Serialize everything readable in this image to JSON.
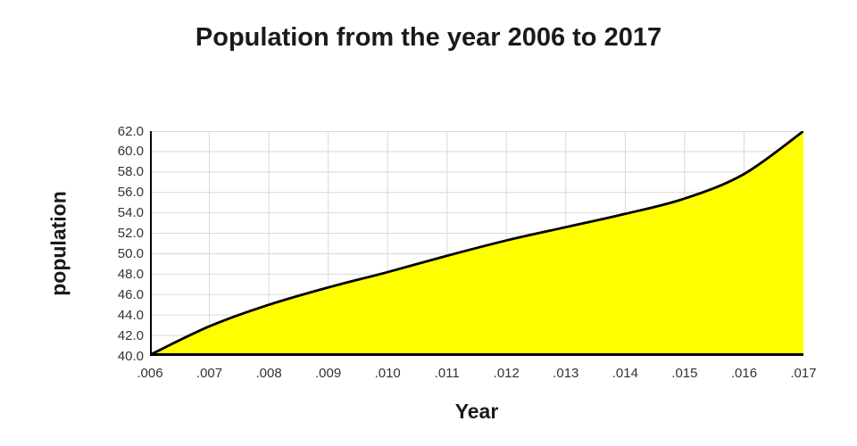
{
  "chart_data": {
    "type": "area",
    "title": "Population from the year 2006 to 2017",
    "xlabel": "Year",
    "ylabel": "population",
    "x": [
      2006,
      2007,
      2008,
      2009,
      2010,
      2011,
      2012,
      2013,
      2014,
      2015,
      2016,
      2017
    ],
    "x_tick_labels": [
      ".006",
      ".007",
      ".008",
      ".009",
      ".010",
      ".011",
      ".012",
      ".013",
      ".014",
      ".015",
      ".016",
      ".017"
    ],
    "y_tick_labels": [
      "62.0",
      "60.0",
      "58.0",
      "56.0",
      "54.0",
      "52.0",
      "50.0",
      "48.0",
      "46.0",
      "44.0",
      "42.0",
      "40.0"
    ],
    "ylim": [
      40,
      62
    ],
    "y_tick_step": 2.0,
    "series": [
      {
        "name": "population",
        "values": [
          40.1,
          42.9,
          45.0,
          46.7,
          48.2,
          49.8,
          51.3,
          52.6,
          53.9,
          55.4,
          57.8,
          62.0
        ]
      }
    ],
    "grid": true,
    "legend_position": "none",
    "colors": {
      "fill": "#FFFF00",
      "line": "#000000",
      "grid": "#D9D9D9",
      "axis": "#000000",
      "title_text": "#1A1A1A",
      "tick_text": "#333333",
      "background": "#FFFFFF"
    }
  }
}
